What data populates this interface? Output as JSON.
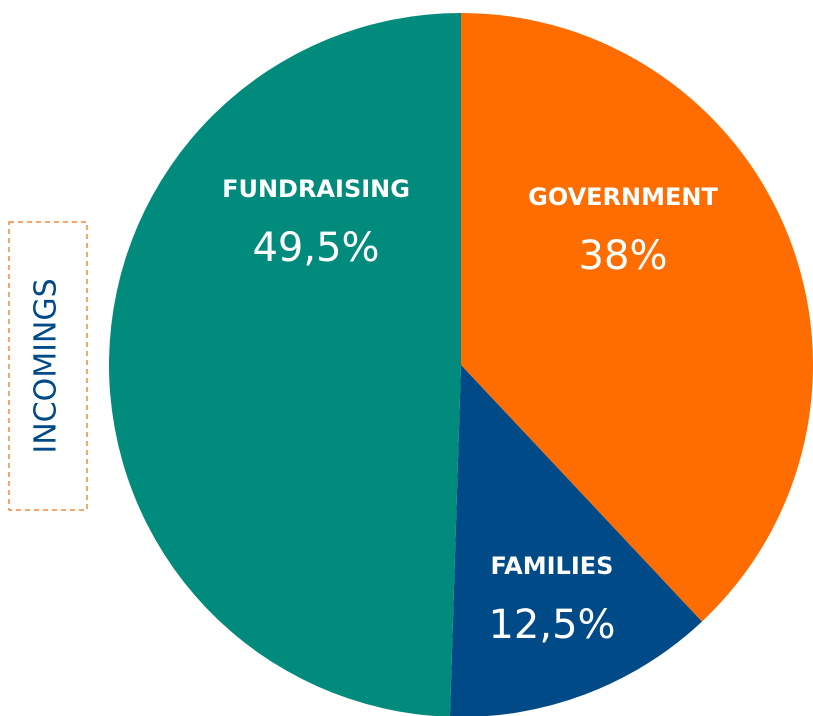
{
  "chart_data": {
    "type": "pie",
    "title": "INCOMINGS",
    "categories": [
      "GOVERNMENT",
      "FAMILIES",
      "FUNDRAISING"
    ],
    "values": [
      38,
      12.5,
      49.5
    ],
    "value_labels": [
      "38%",
      "12,5%",
      "49,5%"
    ],
    "colors": [
      "#ff6c00",
      "#004a87",
      "#008b7d"
    ]
  }
}
